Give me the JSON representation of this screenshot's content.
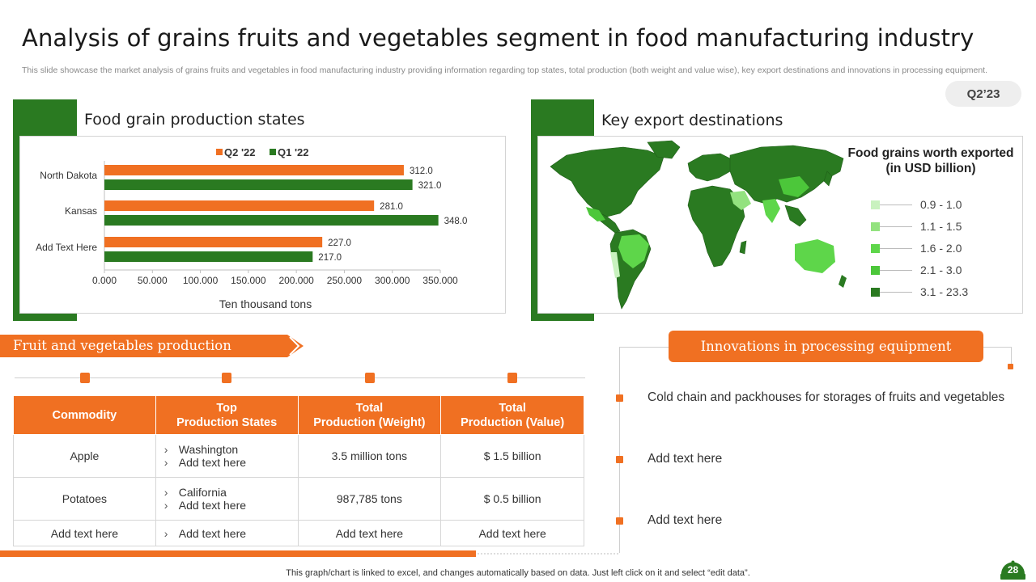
{
  "title": "Analysis of grains fruits and vegetables segment in food manufacturing industry",
  "subtitle": "This slide showcase the market analysis of grains fruits and vegetables in food manufacturing industry providing information regarding top states, total production (both weight and value wise), key export destinations and innovations in processing equipment.",
  "quarter": "Q2’23",
  "grain_panel": {
    "heading": "Food grain production states"
  },
  "export_panel": {
    "heading": "Key export destinations"
  },
  "chart_data": {
    "type": "bar",
    "orientation": "horizontal",
    "categories": [
      "North Dakota",
      "Kansas",
      "Add Text Here"
    ],
    "series": [
      {
        "name": "Q2 '22",
        "values": [
          312.0,
          281.0,
          227.0
        ],
        "color": "#f07022"
      },
      {
        "name": "Q1 '22",
        "values": [
          321.0,
          348.0,
          217.0
        ],
        "color": "#2a7a21"
      }
    ],
    "xlabel": "Ten thousand tons",
    "xlim": [
      0,
      350
    ],
    "xticks": [
      "0.000",
      "50.000",
      "100.000",
      "150.000",
      "200.000",
      "250.000",
      "300.000",
      "350.000"
    ],
    "legend_position": "top",
    "grid": false
  },
  "map_legend": {
    "title": "Food grains worth exported  (in USD billion)",
    "items": [
      {
        "label": "0.9  - 1.0",
        "color": "#c9f2bf"
      },
      {
        "label": "1.1  - 1.5",
        "color": "#93e27f"
      },
      {
        "label": "1.6  - 2.0",
        "color": "#5ed64a"
      },
      {
        "label": "2.1  - 3.0",
        "color": "#4cc73a"
      },
      {
        "label": "3.1  - 23.3",
        "color": "#2a7a21"
      }
    ]
  },
  "fruit_section": {
    "heading": "Fruit and vegetables production",
    "table": {
      "headers": [
        "Commodity",
        "Top\nProduction States",
        "Total\nProduction (Weight)",
        "Total\nProduction (Value)"
      ],
      "rows": [
        {
          "commodity": "Apple",
          "states": [
            "Washington",
            "Add text here"
          ],
          "weight": "3.5 million tons",
          "value": "$ 1.5 billion"
        },
        {
          "commodity": "Potatoes",
          "states": [
            "California",
            "Add text here"
          ],
          "weight": "987,785 tons",
          "value": "$ 0.5 billion"
        },
        {
          "commodity": "Add text here",
          "states": [
            "Add text here"
          ],
          "weight": "Add text here",
          "value": "Add text here"
        }
      ]
    }
  },
  "innovations": {
    "heading": "Innovations in processing equipment",
    "items": [
      "Cold chain and packhouses for storages of fruits and vegetables",
      "Add text here",
      "Add text here"
    ]
  },
  "footer_note": "This graph/chart is linked to excel,  and changes automatically based on data. Just left click on it and select “edit data”.",
  "page_number": "28"
}
